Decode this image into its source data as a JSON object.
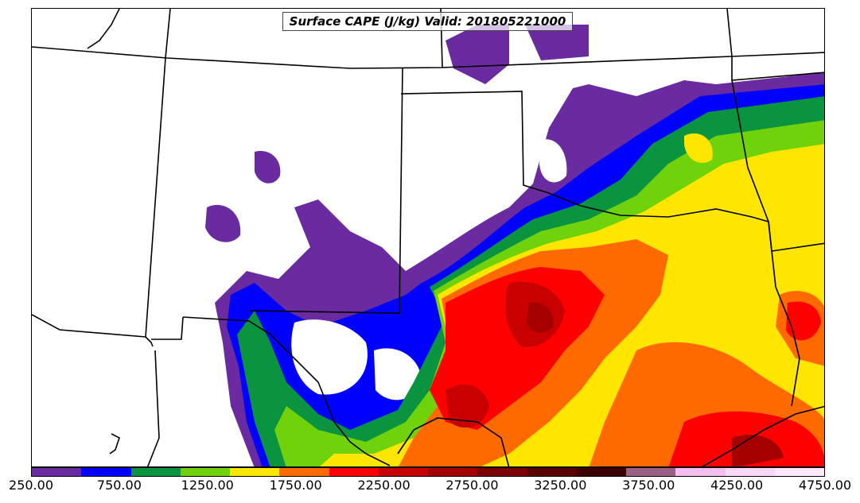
{
  "title": "Surface CAPE (J/kg) Valid: 201805221000",
  "colorbar": {
    "colors": [
      "#6a2aa0",
      "#0000ff",
      "#0a9440",
      "#6fd20a",
      "#ffe600",
      "#ff6a00",
      "#ff0000",
      "#c80000",
      "#a50000",
      "#7d0000",
      "#5a0000",
      "#3c0000",
      "#9c5f86",
      "#f3bdf0",
      "#f8d8f6",
      "#fde9fb"
    ],
    "ticks": [
      "250.00",
      "750.00",
      "1250.00",
      "1750.00",
      "2250.00",
      "2750.00",
      "3250.00",
      "3750.00",
      "4250.00",
      "4750.00"
    ]
  }
}
